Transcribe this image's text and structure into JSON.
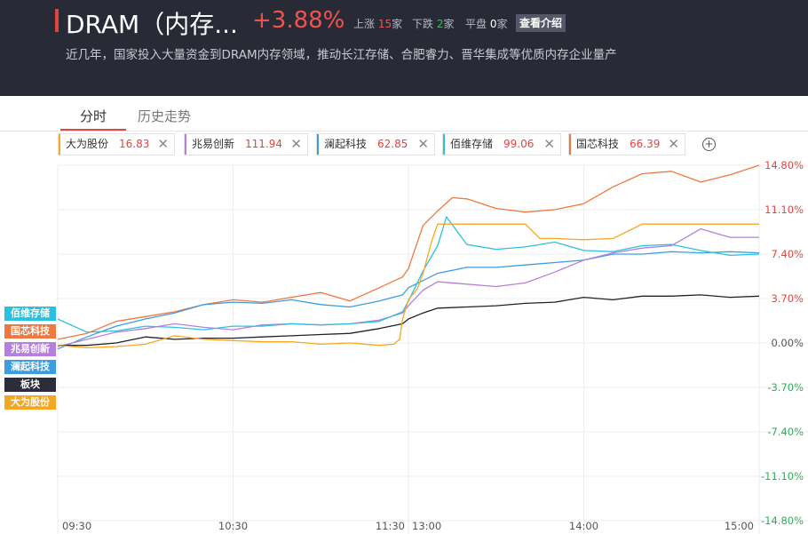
{
  "header": {
    "title": "DRAM（内存...",
    "change_pct": "+3.88%",
    "up_label": "上涨",
    "up_count": "15",
    "down_label": "下跌",
    "down_count": "2",
    "flat_label": "平盘",
    "flat_count": "0",
    "unit": "家",
    "intro_button": "查看介绍",
    "description": "近几年，国家投入大量资金到DRAM内存领域，推动长江存储、合肥睿力、晋华集成等优质内存企业量产"
  },
  "tabs": [
    {
      "label": "分时"
    },
    {
      "label": "历史走势"
    }
  ],
  "legend": [
    {
      "name": "大为股份",
      "price": "16.83",
      "color": "#f5a623"
    },
    {
      "name": "兆易创新",
      "price": "111.94",
      "color": "#b57fe0"
    },
    {
      "name": "澜起科技",
      "price": "62.85",
      "color": "#3d9de3"
    },
    {
      "name": "佰维存储",
      "price": "99.06",
      "color": "#2cc0e0"
    },
    {
      "name": "国芯科技",
      "price": "66.39",
      "color": "#f07840"
    }
  ],
  "side_tags": [
    {
      "name": "佰维存储",
      "color": "#2cc0e0"
    },
    {
      "name": "国芯科技",
      "color": "#f07840"
    },
    {
      "name": "兆易创新",
      "color": "#b57fe0"
    },
    {
      "name": "澜起科技",
      "color": "#3d9de3"
    },
    {
      "name": "板块",
      "color": "#222222"
    },
    {
      "name": "大为股份",
      "color": "#f5a623"
    }
  ],
  "chart_data": {
    "type": "line",
    "x_ticks": [
      "09:30",
      "10:30",
      "11:30",
      "13:00",
      "14:00",
      "15:00"
    ],
    "y_ticks": [
      "14.80%",
      "11.10%",
      "7.40%",
      "3.70%",
      "0.00%",
      "-3.70%",
      "-7.40%",
      "-11.10%",
      "-14.80%"
    ],
    "y_tick_values": [
      14.8,
      11.1,
      7.4,
      3.7,
      0.0,
      -3.7,
      -7.4,
      -11.1,
      -14.8
    ],
    "ylim": [
      -14.8,
      14.8
    ],
    "x_unit_minutes": [
      0,
      240
    ],
    "up_color": "#e5433f",
    "down_color": "#2eaf5b",
    "grid": true,
    "series": [
      {
        "name": "国芯科技",
        "color": "#f07840",
        "x": [
          0,
          10,
          20,
          30,
          40,
          50,
          60,
          70,
          80,
          90,
          100,
          110,
          118,
          120,
          125,
          130,
          135,
          140,
          150,
          160,
          170,
          180,
          190,
          200,
          210,
          220,
          230,
          240
        ],
        "y": [
          0.3,
          0.8,
          1.8,
          2.2,
          2.6,
          3.2,
          3.6,
          3.4,
          3.8,
          4.2,
          3.5,
          4.6,
          5.5,
          6.2,
          9.8,
          11.0,
          12.1,
          12.0,
          11.2,
          10.9,
          11.1,
          11.6,
          13.0,
          14.1,
          14.3,
          13.4,
          14.0,
          14.8
        ]
      },
      {
        "name": "澜起科技",
        "color": "#3d9de3",
        "x": [
          0,
          10,
          20,
          30,
          40,
          50,
          60,
          70,
          80,
          90,
          100,
          110,
          118,
          120,
          125,
          130,
          140,
          150,
          160,
          170,
          180,
          190,
          200,
          210,
          220,
          230,
          240
        ],
        "y": [
          -0.5,
          0.5,
          1.4,
          2.0,
          2.5,
          3.2,
          3.4,
          3.3,
          3.6,
          3.2,
          3.0,
          3.5,
          4.0,
          4.6,
          5.2,
          5.8,
          6.3,
          6.3,
          6.5,
          6.7,
          6.9,
          7.4,
          7.4,
          7.6,
          7.5,
          7.6,
          7.5
        ]
      },
      {
        "name": "兆易创新",
        "color": "#b57fe0",
        "x": [
          0,
          10,
          20,
          30,
          40,
          50,
          60,
          70,
          80,
          90,
          100,
          110,
          118,
          120,
          125,
          130,
          140,
          150,
          160,
          170,
          180,
          190,
          200,
          210,
          220,
          230,
          240
        ],
        "y": [
          -0.3,
          0.3,
          0.9,
          1.2,
          1.6,
          1.3,
          1.1,
          1.5,
          1.6,
          1.5,
          1.6,
          1.9,
          2.5,
          3.1,
          4.4,
          5.1,
          4.9,
          4.7,
          5.0,
          5.9,
          6.9,
          7.5,
          7.9,
          8.1,
          9.5,
          8.8,
          8.8
        ]
      },
      {
        "name": "佰维存储",
        "color": "#2cc0e0",
        "x": [
          0,
          10,
          20,
          30,
          40,
          50,
          60,
          70,
          80,
          90,
          100,
          110,
          118,
          120,
          125,
          130,
          133,
          140,
          150,
          160,
          170,
          180,
          190,
          200,
          210,
          220,
          230,
          240
        ],
        "y": [
          2.0,
          0.9,
          1.0,
          1.4,
          1.3,
          1.1,
          1.4,
          1.4,
          1.6,
          1.5,
          1.6,
          1.8,
          2.6,
          3.5,
          6.0,
          8.1,
          10.5,
          8.2,
          7.8,
          8.0,
          8.4,
          7.7,
          7.6,
          8.1,
          8.2,
          7.7,
          7.3,
          7.4
        ]
      },
      {
        "name": "板块",
        "color": "#222222",
        "x": [
          0,
          10,
          20,
          30,
          40,
          50,
          60,
          70,
          80,
          90,
          100,
          110,
          118,
          120,
          125,
          130,
          140,
          150,
          160,
          170,
          180,
          190,
          200,
          210,
          220,
          230,
          240
        ],
        "y": [
          -0.2,
          -0.2,
          0.0,
          0.5,
          0.3,
          0.4,
          0.4,
          0.5,
          0.6,
          0.7,
          0.8,
          1.2,
          1.6,
          2.0,
          2.5,
          2.9,
          3.0,
          3.1,
          3.3,
          3.4,
          3.8,
          3.6,
          3.9,
          3.9,
          4.0,
          3.8,
          3.9
        ]
      },
      {
        "name": "大为股份",
        "color": "#f5a623",
        "x": [
          0,
          10,
          20,
          30,
          40,
          50,
          60,
          70,
          80,
          90,
          100,
          110,
          115,
          117,
          118,
          120,
          123,
          125,
          128,
          130,
          140,
          150,
          160,
          165,
          170,
          180,
          190,
          200,
          210,
          220,
          230,
          240
        ],
        "y": [
          -0.2,
          -0.4,
          -0.3,
          -0.1,
          0.6,
          0.3,
          0.2,
          0.1,
          0.1,
          -0.1,
          0.0,
          -0.2,
          -0.1,
          0.3,
          2.0,
          3.6,
          4.5,
          5.8,
          8.5,
          9.9,
          9.9,
          9.9,
          9.9,
          8.7,
          8.7,
          8.6,
          8.7,
          9.9,
          9.9,
          9.9,
          9.9,
          9.9
        ]
      }
    ]
  }
}
